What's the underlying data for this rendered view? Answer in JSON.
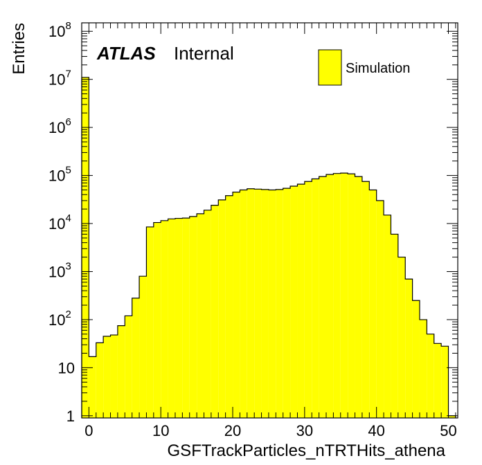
{
  "chart_data": {
    "type": "bar",
    "xlabel": "GSFTrackParticles_nTRTHits_athena",
    "ylabel": "Entries",
    "atlas_label": "ATLAS",
    "atlas_status": "Internal",
    "legend": [
      {
        "name": "Simulation",
        "color": "#ffff00"
      }
    ],
    "legend_position": "top-right",
    "fill_color": "#ffff00",
    "line_color": "#000000",
    "xlim": [
      -1,
      51.3
    ],
    "ylim": [
      0.9,
      150000000
    ],
    "y_scale": "log",
    "grid": false,
    "x_ticks": [
      0,
      10,
      20,
      30,
      40,
      50
    ],
    "y_ticks": [
      {
        "value": 1,
        "base": "1",
        "exp": ""
      },
      {
        "value": 10,
        "base": "10",
        "exp": ""
      },
      {
        "value": 100,
        "base": "10",
        "exp": "2"
      },
      {
        "value": 1000,
        "base": "10",
        "exp": "3"
      },
      {
        "value": 10000,
        "base": "10",
        "exp": "4"
      },
      {
        "value": 100000,
        "base": "10",
        "exp": "5"
      },
      {
        "value": 1000000,
        "base": "10",
        "exp": "6"
      },
      {
        "value": 10000000,
        "base": "10",
        "exp": "7"
      },
      {
        "value": 100000000,
        "base": "10",
        "exp": "8"
      }
    ],
    "bin_width": 1,
    "bin_low_edges": [
      -1,
      0,
      1,
      2,
      3,
      4,
      5,
      6,
      7,
      8,
      9,
      10,
      11,
      12,
      13,
      14,
      15,
      16,
      17,
      18,
      19,
      20,
      21,
      22,
      23,
      24,
      25,
      26,
      27,
      28,
      29,
      30,
      31,
      32,
      33,
      34,
      35,
      36,
      37,
      38,
      39,
      40,
      41,
      42,
      43,
      44,
      45,
      46,
      47,
      48,
      49,
      50
    ],
    "values": [
      11000000.0,
      17,
      33,
      45,
      48,
      75,
      120,
      280,
      800,
      8500,
      10500,
      11500,
      12500,
      12800,
      13000,
      14000,
      16000,
      19000,
      24000,
      31000,
      38000,
      45000,
      50000,
      53000,
      52000,
      51000,
      50000,
      51000,
      54000,
      60000,
      66000,
      75000,
      85000,
      95000,
      105000,
      110000,
      112000,
      108000,
      95000,
      75000,
      50000,
      30000,
      15000,
      6000,
      2000,
      700,
      250,
      100,
      50,
      32,
      28,
      1
    ]
  }
}
